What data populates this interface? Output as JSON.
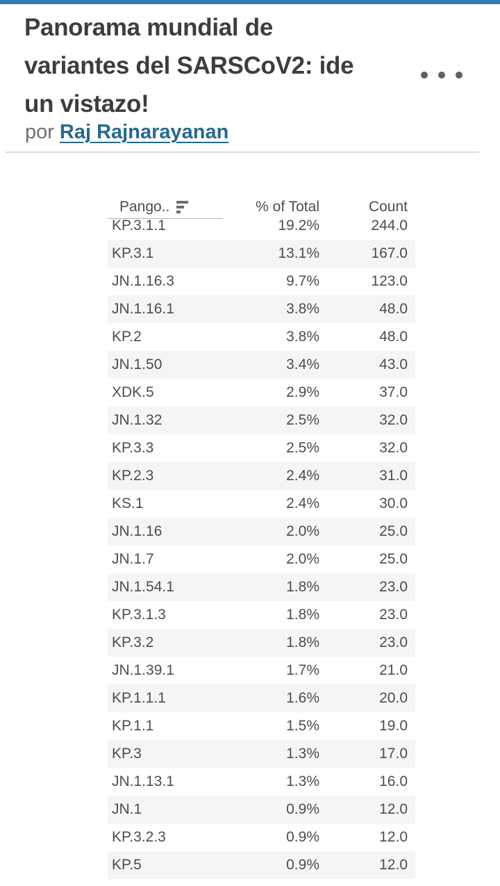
{
  "header": {
    "title_lines": [
      "Panorama mundial de",
      "variantes del SARSCoV2: ide",
      "un vistazo!"
    ],
    "byline_prefix": "por",
    "author": "Raj Rajnarayanan",
    "menu_icon": "ellipsis-more-options"
  },
  "colors": {
    "top_bar": "#2f7ab5",
    "author_link": "#266990",
    "row_stripe": "#f5f5f5",
    "title_text": "#3d3d3d",
    "table_text": "#4d4d4d"
  },
  "table": {
    "columns": [
      {
        "label": "Pango..",
        "sort": "descending",
        "icon": "sort-descending-icon"
      },
      {
        "label": "% of Total"
      },
      {
        "label": "Count"
      }
    ],
    "rows": [
      {
        "variant": "KP.3.1.1",
        "pct": "19.2%",
        "count": "244.0"
      },
      {
        "variant": "KP.3.1",
        "pct": "13.1%",
        "count": "167.0"
      },
      {
        "variant": "JN.1.16.3",
        "pct": "9.7%",
        "count": "123.0"
      },
      {
        "variant": "JN.1.16.1",
        "pct": "3.8%",
        "count": "48.0"
      },
      {
        "variant": "KP.2",
        "pct": "3.8%",
        "count": "48.0"
      },
      {
        "variant": "JN.1.50",
        "pct": "3.4%",
        "count": "43.0"
      },
      {
        "variant": "XDK.5",
        "pct": "2.9%",
        "count": "37.0"
      },
      {
        "variant": "JN.1.32",
        "pct": "2.5%",
        "count": "32.0"
      },
      {
        "variant": "KP.3.3",
        "pct": "2.5%",
        "count": "32.0"
      },
      {
        "variant": "KP.2.3",
        "pct": "2.4%",
        "count": "31.0"
      },
      {
        "variant": "KS.1",
        "pct": "2.4%",
        "count": "30.0"
      },
      {
        "variant": "JN.1.16",
        "pct": "2.0%",
        "count": "25.0"
      },
      {
        "variant": "JN.1.7",
        "pct": "2.0%",
        "count": "25.0"
      },
      {
        "variant": "JN.1.54.1",
        "pct": "1.8%",
        "count": "23.0"
      },
      {
        "variant": "KP.3.1.3",
        "pct": "1.8%",
        "count": "23.0"
      },
      {
        "variant": "KP.3.2",
        "pct": "1.8%",
        "count": "23.0"
      },
      {
        "variant": "JN.1.39.1",
        "pct": "1.7%",
        "count": "21.0"
      },
      {
        "variant": "KP.1.1.1",
        "pct": "1.6%",
        "count": "20.0"
      },
      {
        "variant": "KP.1.1",
        "pct": "1.5%",
        "count": "19.0"
      },
      {
        "variant": "KP.3",
        "pct": "1.3%",
        "count": "17.0"
      },
      {
        "variant": "JN.1.13.1",
        "pct": "1.3%",
        "count": "16.0"
      },
      {
        "variant": "JN.1",
        "pct": "0.9%",
        "count": "12.0"
      },
      {
        "variant": "KP.3.2.3",
        "pct": "0.9%",
        "count": "12.0"
      },
      {
        "variant": "KP.5",
        "pct": "0.9%",
        "count": "12.0"
      }
    ]
  }
}
